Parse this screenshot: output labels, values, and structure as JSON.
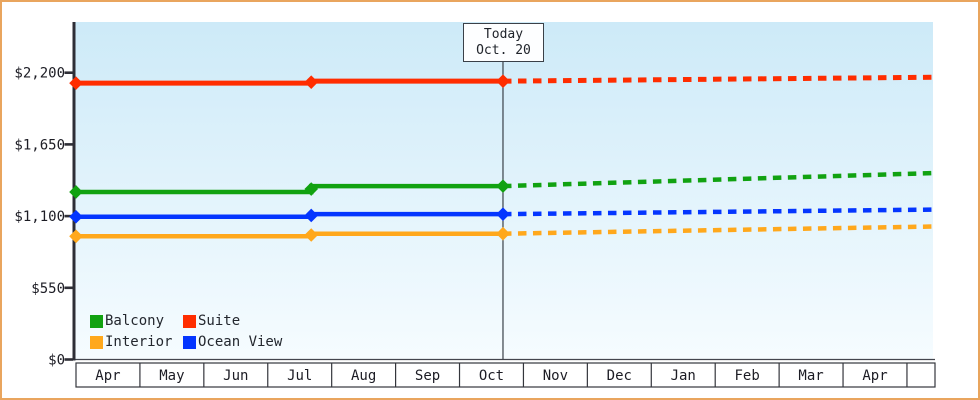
{
  "window": {
    "type": "price-history-chart"
  },
  "chart_data": {
    "type": "line",
    "title": "",
    "description": "Cruise cabin price history by category with dotted forecast after today",
    "currency": "USD",
    "grid": false,
    "plot_bg_gradient": [
      "#cdeaf8",
      "#f6fcff"
    ],
    "axis_color": "#2e2e36",
    "y_axis": {
      "axis_range": [
        0,
        2590
      ],
      "ticks": [
        {
          "label": "$0",
          "value": 0
        },
        {
          "label": "$550",
          "value": 550
        },
        {
          "label": "$1,100",
          "value": 1100
        },
        {
          "label": "$1,650",
          "value": 1650
        },
        {
          "label": "$2,200",
          "value": 2200
        }
      ]
    },
    "x_axis": {
      "months": [
        "Apr",
        "May",
        "Jun",
        "Jul",
        "Aug",
        "Sep",
        "Oct",
        "Nov",
        "Dec",
        "Jan",
        "Feb",
        "Mar",
        "Apr"
      ]
    },
    "today_marker": {
      "line1": "Today",
      "line2": "Oct. 20",
      "month_x": 6.68
    },
    "forecast_end_month_x": 13.41,
    "series": [
      {
        "name": "Interior",
        "color": "#ffa81c",
        "line_width": 4.5,
        "history": [
          {
            "month_x": 0,
            "value": 945
          },
          {
            "month_x": 3.68,
            "value": 965
          },
          {
            "month_x": 6.68,
            "value": 965
          }
        ],
        "forecast_end_value": 1020
      },
      {
        "name": "Ocean View",
        "color": "#0435ff",
        "line_width": 4.5,
        "history": [
          {
            "month_x": 0,
            "value": 1095
          },
          {
            "month_x": 3.68,
            "value": 1115
          },
          {
            "month_x": 6.68,
            "value": 1115
          }
        ],
        "forecast_end_value": 1150
      },
      {
        "name": "Balcony",
        "color": "#11a211",
        "line_width": 4.5,
        "history": [
          {
            "month_x": 0,
            "value": 1285
          },
          {
            "month_x": 3.68,
            "value": 1330
          },
          {
            "month_x": 6.68,
            "value": 1330
          }
        ],
        "forecast_end_value": 1430
      },
      {
        "name": "Suite",
        "color": "#ff2d00",
        "line_width": 5,
        "history": [
          {
            "month_x": 0,
            "value": 2120
          },
          {
            "month_x": 3.68,
            "value": 2135
          },
          {
            "month_x": 6.68,
            "value": 2135
          }
        ],
        "forecast_end_value": 2165
      }
    ],
    "legend": {
      "position": "bottom-left",
      "items": [
        {
          "label": "Balcony",
          "color": "#11a211"
        },
        {
          "label": "Suite",
          "color": "#ff2d00"
        },
        {
          "label": "Interior",
          "color": "#ffa81c"
        },
        {
          "label": "Ocean View",
          "color": "#0435ff"
        }
      ]
    }
  }
}
